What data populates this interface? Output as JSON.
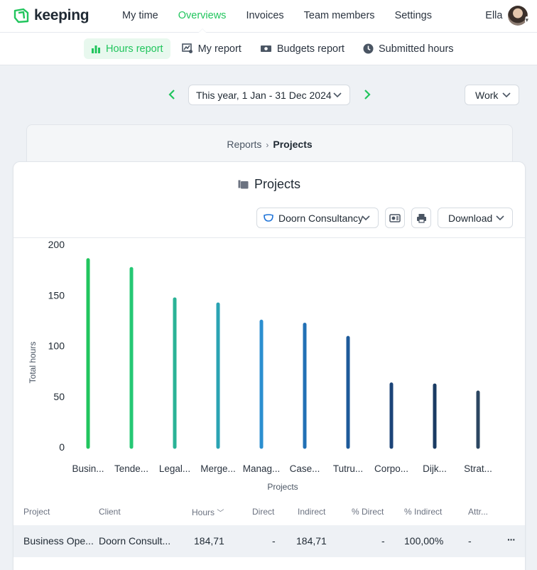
{
  "app": {
    "name": "keeping",
    "brand_color": "#21c55d"
  },
  "nav": {
    "items": [
      "My time",
      "Overviews",
      "Invoices",
      "Team members",
      "Settings"
    ],
    "active": "Overviews",
    "user_name": "Ella"
  },
  "subnav": {
    "items": [
      {
        "label": "Hours report",
        "icon": "bar-chart-icon",
        "active": true
      },
      {
        "label": "My report",
        "icon": "my-report-icon",
        "active": false
      },
      {
        "label": "Budgets report",
        "icon": "money-icon",
        "active": false
      },
      {
        "label": "Submitted hours",
        "icon": "clock-icon",
        "active": false
      }
    ]
  },
  "filters": {
    "date_range": "This year, 1 Jan - 31 Dec 2024",
    "type": "Work"
  },
  "breadcrumb": {
    "parent": "Reports",
    "current": "Projects"
  },
  "card": {
    "title": "Projects",
    "client_filter": "Doorn Consultancy",
    "download_label": "Download"
  },
  "chart_data": {
    "type": "bar",
    "xlabel": "Projects",
    "ylabel": "Total hours",
    "ylim": [
      0,
      200
    ],
    "yticks": [
      0,
      50,
      100,
      150,
      200
    ],
    "categories": [
      "Busin...",
      "Tende...",
      "Legal...",
      "Merge...",
      "Manag...",
      "Case...",
      "Tutru...",
      "Corpo...",
      "Dijk...",
      "Strat..."
    ],
    "values": [
      184.71,
      176,
      146,
      141,
      124,
      121,
      108,
      62,
      61,
      54
    ],
    "colors": [
      "#22c55e",
      "#25c874",
      "#2ab396",
      "#2aa3b3",
      "#2b8fd0",
      "#2170b5",
      "#1e5a9a",
      "#1c4478",
      "#1a3b63",
      "#2b4661"
    ]
  },
  "table": {
    "columns": [
      "Project",
      "Client",
      "Hours",
      "Direct",
      "Indirect",
      "% Direct",
      "% Indirect",
      "Attr..."
    ],
    "rows": [
      {
        "project": "Business Ope...",
        "client": "Doorn Consult...",
        "hours": "184,71",
        "direct": "-",
        "indirect": "184,71",
        "pct_direct": "-",
        "pct_indirect": "100,00%",
        "attr": "-",
        "more": "···"
      }
    ]
  }
}
